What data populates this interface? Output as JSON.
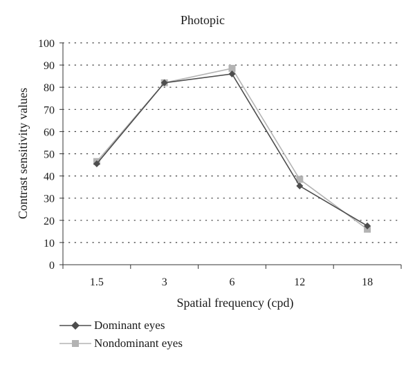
{
  "chart_data": {
    "type": "line",
    "title": "Photopic",
    "xlabel": "Spatial frequency (cpd)",
    "ylabel": "Contrast sensitivity values",
    "categories": [
      "1.5",
      "3",
      "6",
      "12",
      "18"
    ],
    "ylim": [
      0,
      100
    ],
    "yticks": [
      "0",
      "10",
      "20",
      "30",
      "40",
      "50",
      "60",
      "70",
      "80",
      "90",
      "100"
    ],
    "grid": "dotted-horizontal",
    "legend_position": "bottom-left",
    "series": [
      {
        "name": "Dominant eyes",
        "values": [
          45.5,
          82,
          86,
          35.5,
          17.5
        ],
        "color": "#4d4d4d",
        "marker": "diamond"
      },
      {
        "name": "Nondominant eyes",
        "values": [
          46.5,
          82,
          88.5,
          38.5,
          16
        ],
        "color": "#b3b3b3",
        "marker": "square"
      }
    ]
  }
}
